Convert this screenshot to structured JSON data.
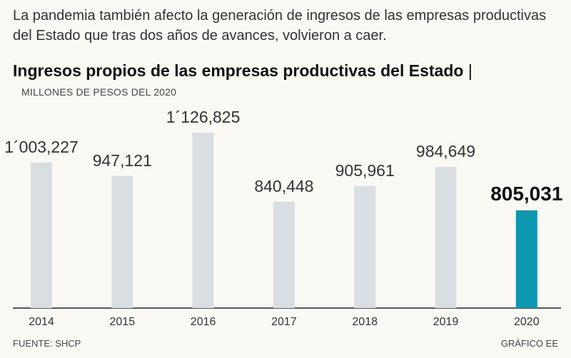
{
  "intro": "La pandemia también afecto la generación de ingresos de las empresas productivas del Estado que tras dos años de avances, volvieron a caer.",
  "source": "FUENTE: SHCP",
  "credit": "GRÁFICO EE",
  "colors": {
    "bar": "#d8dee2",
    "highlight": "#0d97b0",
    "axis": "#222222"
  },
  "chart_data": {
    "type": "bar",
    "title": "Ingresos propios de las empresas productivas del Estado",
    "title_suffix": "|",
    "subtitle": "MILLONES DE PESOS DEL 2020",
    "xlabel": "",
    "ylabel": "MILLONES DE PESOS DEL 2020",
    "categories": [
      "2014",
      "2015",
      "2016",
      "2017",
      "2018",
      "2019",
      "2020"
    ],
    "values": [
      1003227,
      947121,
      1126825,
      840448,
      905961,
      984649,
      805031
    ],
    "value_labels": [
      "1´003,227",
      "947,121",
      "1´126,825",
      "840,448",
      "905,961",
      "984,649",
      "805,031"
    ],
    "highlight_index": 6,
    "ylim": [
      400000,
      1126825
    ]
  }
}
